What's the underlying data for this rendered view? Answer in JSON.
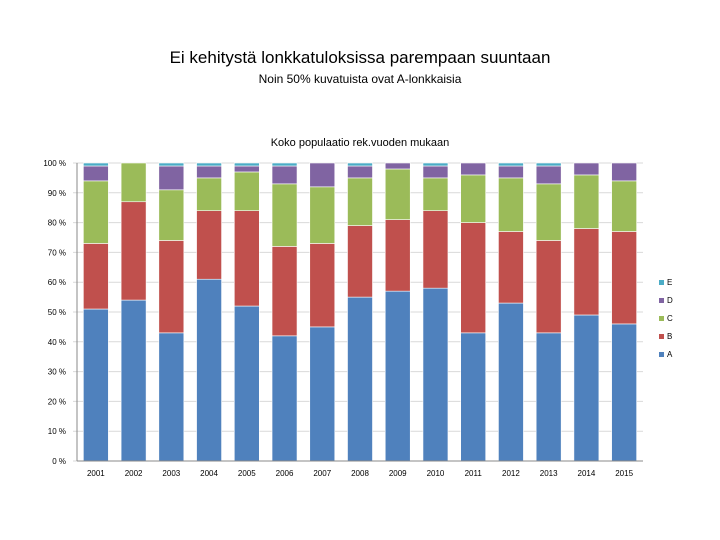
{
  "slide": {
    "title": "Ei kehitystä lonkkatuloksissa parempaan suuntaan",
    "subtitle": "Noin 50% kuvatuista ovat A-lonkkaisia"
  },
  "colors": {
    "A": "#4f81bd",
    "B": "#c0504d",
    "C": "#9bbb59",
    "D": "#8064a2",
    "E": "#4bacc6"
  },
  "chart_data": {
    "type": "bar",
    "stacked": true,
    "percent": true,
    "title": "Koko populaatio rek.vuoden mukaan",
    "xlabel": "",
    "ylabel": "",
    "ylim": [
      0,
      100
    ],
    "yticks": [
      "0 %",
      "10 %",
      "20 %",
      "30 %",
      "40 %",
      "50 %",
      "60 %",
      "70 %",
      "80 %",
      "90 %",
      "100 %"
    ],
    "grid": true,
    "legend_position": "right",
    "categories": [
      "2001",
      "2002",
      "2003",
      "2004",
      "2005",
      "2006",
      "2007",
      "2008",
      "2009",
      "2010",
      "2011",
      "2012",
      "2013",
      "2014",
      "2015"
    ],
    "series": [
      {
        "name": "A",
        "values": [
          51,
          54,
          43,
          61,
          52,
          42,
          45,
          55,
          57,
          58,
          43,
          53,
          43,
          49,
          46
        ]
      },
      {
        "name": "B",
        "values": [
          22,
          33,
          31,
          23,
          32,
          30,
          28,
          24,
          24,
          26,
          37,
          24,
          31,
          29,
          31
        ]
      },
      {
        "name": "C",
        "values": [
          21,
          13,
          17,
          11,
          13,
          21,
          19,
          16,
          17,
          11,
          16,
          18,
          19,
          18,
          17
        ]
      },
      {
        "name": "D",
        "values": [
          5,
          0,
          8,
          4,
          2,
          6,
          8,
          4,
          2,
          4,
          4,
          4,
          6,
          4,
          6
        ]
      },
      {
        "name": "E",
        "values": [
          1,
          0,
          1,
          1,
          1,
          1,
          0,
          1,
          0,
          1,
          0,
          1,
          1,
          0,
          0
        ]
      }
    ],
    "legend_order": [
      "E",
      "D",
      "C",
      "B",
      "A"
    ]
  }
}
